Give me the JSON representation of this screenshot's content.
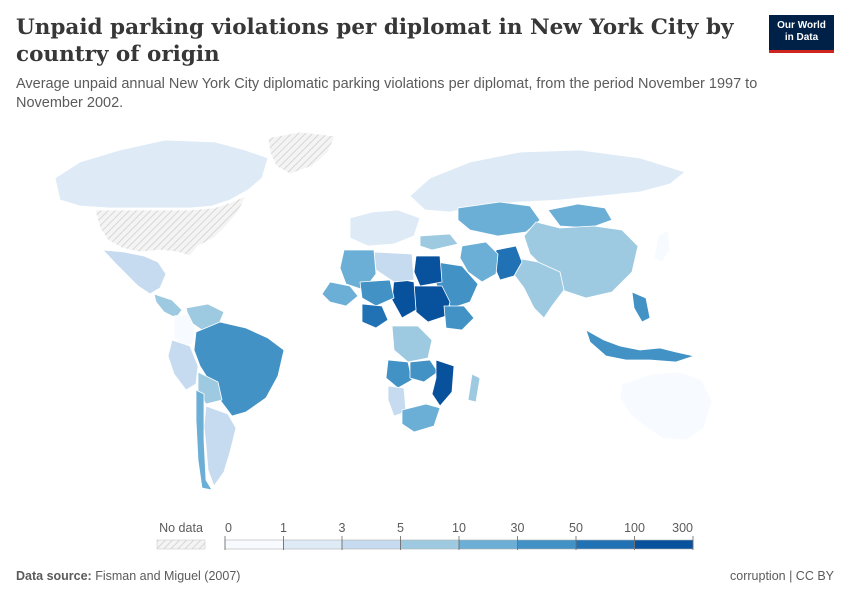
{
  "header": {
    "title": "Unpaid parking violations per diplomat in New York City by country of origin",
    "subtitle": "Average unpaid annual New York City diplomatic parking violations per diplomat, from the period November 1997 to November 2002.",
    "logo_line1": "Our World",
    "logo_line2": "in Data"
  },
  "legend": {
    "no_data_label": "No data",
    "ticks": [
      "0",
      "1",
      "3",
      "5",
      "10",
      "30",
      "50",
      "100",
      "300"
    ],
    "colors": [
      "#f7fbff",
      "#deebf7",
      "#c6dbef",
      "#9ecae1",
      "#6baed6",
      "#4292c6",
      "#2171b5",
      "#08519c"
    ]
  },
  "footer": {
    "source_label": "Data source:",
    "source_text": "Fisman and Miguel (2007)",
    "right_text": "corruption | CC BY"
  },
  "colors": {
    "no_data": "#dddddd",
    "border": "#ffffff",
    "title": "#373737",
    "text": "#5b5b5b",
    "brand": "#002147",
    "brand_accent": "#ce261e"
  },
  "map_data": {
    "regions": [
      {
        "name": "Canada",
        "bin": 1
      },
      {
        "name": "United States",
        "bin": -1
      },
      {
        "name": "Greenland",
        "bin": -1
      },
      {
        "name": "Mexico",
        "bin": 2
      },
      {
        "name": "Central America",
        "bin": 3
      },
      {
        "name": "Venezuela",
        "bin": 3
      },
      {
        "name": "Colombia",
        "bin": 0
      },
      {
        "name": "Brazil",
        "bin": 5
      },
      {
        "name": "Peru",
        "bin": 2
      },
      {
        "name": "Bolivia",
        "bin": 3
      },
      {
        "name": "Argentina",
        "bin": 2
      },
      {
        "name": "Chile",
        "bin": 4
      },
      {
        "name": "Russia",
        "bin": 1
      },
      {
        "name": "Kazakhstan",
        "bin": 4
      },
      {
        "name": "Mongolia",
        "bin": 4
      },
      {
        "name": "China",
        "bin": 3
      },
      {
        "name": "India",
        "bin": 3
      },
      {
        "name": "Pakistan",
        "bin": 6
      },
      {
        "name": "Iran",
        "bin": 4
      },
      {
        "name": "Saudi Arabia",
        "bin": 5
      },
      {
        "name": "Egypt",
        "bin": 7
      },
      {
        "name": "Sudan",
        "bin": 7
      },
      {
        "name": "Chad",
        "bin": 7
      },
      {
        "name": "Libya",
        "bin": 2
      },
      {
        "name": "Algeria",
        "bin": 4
      },
      {
        "name": "Mali",
        "bin": 4
      },
      {
        "name": "Niger",
        "bin": 5
      },
      {
        "name": "Nigeria",
        "bin": 6
      },
      {
        "name": "Ethiopia",
        "bin": 5
      },
      {
        "name": "DR Congo",
        "bin": 3
      },
      {
        "name": "Angola",
        "bin": 5
      },
      {
        "name": "Zambia",
        "bin": 5
      },
      {
        "name": "Mozambique",
        "bin": 7
      },
      {
        "name": "Namibia",
        "bin": 2
      },
      {
        "name": "South Africa",
        "bin": 4
      },
      {
        "name": "Madagascar",
        "bin": 3
      },
      {
        "name": "Western Europe",
        "bin": 1
      },
      {
        "name": "Turkey",
        "bin": 3
      },
      {
        "name": "Indonesia",
        "bin": 5
      },
      {
        "name": "Philippines",
        "bin": 5
      },
      {
        "name": "Australia",
        "bin": 0
      },
      {
        "name": "Japan",
        "bin": 0
      }
    ]
  }
}
